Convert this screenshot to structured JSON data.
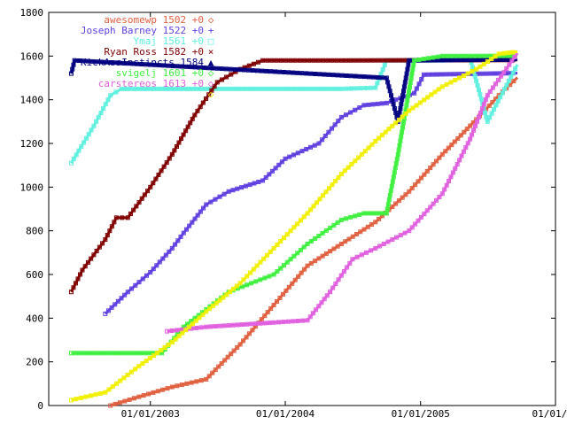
{
  "chart_data": {
    "type": "line",
    "title": "",
    "xlabel": "",
    "ylabel": "",
    "ylim": [
      0,
      1800
    ],
    "xlim": [
      "2002-04-01",
      "2006-01-01"
    ],
    "y_ticks": [
      "0",
      "200",
      "400",
      "600",
      "800",
      "1000",
      "1200",
      "1400",
      "1600",
      "1800"
    ],
    "x_ticks": [
      "01/01/2003",
      "01/01/2004",
      "01/01/2005",
      "01/01/20"
    ],
    "grid": false,
    "legend_position": "top-left, inside plot",
    "series": [
      {
        "name": "awesomewp",
        "label": "awesomewp 1502 +0",
        "color": "#e06040",
        "marker": "◇",
        "points": [
          [
            "2002-09-15",
            0
          ],
          [
            "2002-12-01",
            40
          ],
          [
            "2003-03-01",
            85
          ],
          [
            "2003-06-01",
            120
          ],
          [
            "2003-09-01",
            280
          ],
          [
            "2003-12-01",
            460
          ],
          [
            "2004-03-01",
            640
          ],
          [
            "2004-06-01",
            740
          ],
          [
            "2004-09-01",
            840
          ],
          [
            "2004-12-01",
            980
          ],
          [
            "2005-03-01",
            1150
          ],
          [
            "2005-06-01",
            1310
          ],
          [
            "2005-08-01",
            1420
          ],
          [
            "2005-09-20",
            1502
          ]
        ]
      },
      {
        "name": "Joseph Barney",
        "label": "Joseph Barney 1522 +0",
        "color": "#6040e0",
        "marker": "+",
        "points": [
          [
            "2002-09-01",
            420
          ],
          [
            "2002-11-01",
            520
          ],
          [
            "2003-01-01",
            610
          ],
          [
            "2003-03-01",
            720
          ],
          [
            "2003-04-01",
            790
          ],
          [
            "2003-06-01",
            920
          ],
          [
            "2003-08-01",
            980
          ],
          [
            "2003-11-01",
            1030
          ],
          [
            "2004-01-01",
            1130
          ],
          [
            "2004-04-01",
            1200
          ],
          [
            "2004-06-01",
            1320
          ],
          [
            "2004-08-01",
            1375
          ],
          [
            "2004-10-01",
            1385
          ],
          [
            "2004-12-15",
            1430
          ],
          [
            "2005-01-10",
            1515
          ],
          [
            "2005-09-20",
            1522
          ]
        ]
      },
      {
        "name": "Ymaj",
        "label": "Ymaj 1561 +0",
        "color": "#60f0e0",
        "marker": "□",
        "points": [
          [
            "2002-06-01",
            1110
          ],
          [
            "2002-08-01",
            1280
          ],
          [
            "2002-09-15",
            1420
          ],
          [
            "2002-10-15",
            1450
          ],
          [
            "2003-06-01",
            1450
          ],
          [
            "2004-06-01",
            1450
          ],
          [
            "2004-09-01",
            1455
          ],
          [
            "2004-10-01",
            1580
          ],
          [
            "2005-03-01",
            1580
          ],
          [
            "2005-05-15",
            1590
          ],
          [
            "2005-07-01",
            1300
          ],
          [
            "2005-09-20",
            1561
          ]
        ]
      },
      {
        "name": "Ryan Ross",
        "label": "Ryan Ross 1582 +0",
        "color": "#800000",
        "marker": "×",
        "points": [
          [
            "2002-06-01",
            520
          ],
          [
            "2002-07-01",
            620
          ],
          [
            "2002-09-01",
            760
          ],
          [
            "2002-10-01",
            860
          ],
          [
            "2002-11-01",
            860
          ],
          [
            "2003-01-01",
            1000
          ],
          [
            "2003-03-01",
            1150
          ],
          [
            "2003-05-01",
            1330
          ],
          [
            "2003-07-01",
            1480
          ],
          [
            "2003-09-01",
            1540
          ],
          [
            "2003-11-01",
            1580
          ],
          [
            "2004-06-01",
            1580
          ],
          [
            "2005-09-20",
            1582
          ]
        ]
      },
      {
        "name": "KickAssInstincts",
        "label": "KickAssInstincts 1584",
        "color": "#000080",
        "marker": "▲",
        "points": [
          [
            "2002-06-01",
            1520
          ],
          [
            "2002-06-10",
            1580
          ],
          [
            "2004-10-01",
            1500
          ],
          [
            "2004-11-01",
            1300
          ],
          [
            "2004-12-01",
            1580
          ],
          [
            "2005-09-20",
            1584
          ]
        ]
      },
      {
        "name": "svigelj",
        "label": "svigelj 1601 +0",
        "color": "#40f040",
        "marker": "◇",
        "points": [
          [
            "2002-06-01",
            240
          ],
          [
            "2003-02-01",
            240
          ],
          [
            "2003-04-01",
            360
          ],
          [
            "2003-08-01",
            520
          ],
          [
            "2003-12-01",
            600
          ],
          [
            "2004-03-01",
            740
          ],
          [
            "2004-06-01",
            850
          ],
          [
            "2004-08-01",
            880
          ],
          [
            "2004-10-01",
            880
          ],
          [
            "2004-11-01",
            1150
          ],
          [
            "2004-12-15",
            1580
          ],
          [
            "2005-03-01",
            1600
          ],
          [
            "2005-09-20",
            1601
          ]
        ]
      },
      {
        "name": "carstereos",
        "label": "carstereos 1613 +0",
        "color": "#e060e0",
        "marker": "◇",
        "points": [
          [
            "2003-02-15",
            340
          ],
          [
            "2003-06-01",
            360
          ],
          [
            "2003-12-01",
            380
          ],
          [
            "2004-03-01",
            390
          ],
          [
            "2004-05-01",
            520
          ],
          [
            "2004-07-01",
            670
          ],
          [
            "2004-09-01",
            720
          ],
          [
            "2004-12-01",
            800
          ],
          [
            "2005-03-01",
            970
          ],
          [
            "2005-05-15",
            1220
          ],
          [
            "2005-07-01",
            1420
          ],
          [
            "2005-09-20",
            1613
          ]
        ]
      },
      {
        "name": "",
        "label": "",
        "color": "#f0f000",
        "marker": "◇",
        "points": [
          [
            "2002-06-01",
            25
          ],
          [
            "2002-09-01",
            60
          ],
          [
            "2002-12-01",
            180
          ],
          [
            "2003-03-01",
            290
          ],
          [
            "2003-06-01",
            430
          ],
          [
            "2003-09-01",
            560
          ],
          [
            "2003-12-01",
            720
          ],
          [
            "2004-03-01",
            880
          ],
          [
            "2004-06-01",
            1060
          ],
          [
            "2004-09-01",
            1210
          ],
          [
            "2004-12-01",
            1350
          ],
          [
            "2005-03-01",
            1460
          ],
          [
            "2005-06-01",
            1540
          ],
          [
            "2005-08-01",
            1610
          ],
          [
            "2005-09-20",
            1620
          ]
        ]
      }
    ]
  }
}
